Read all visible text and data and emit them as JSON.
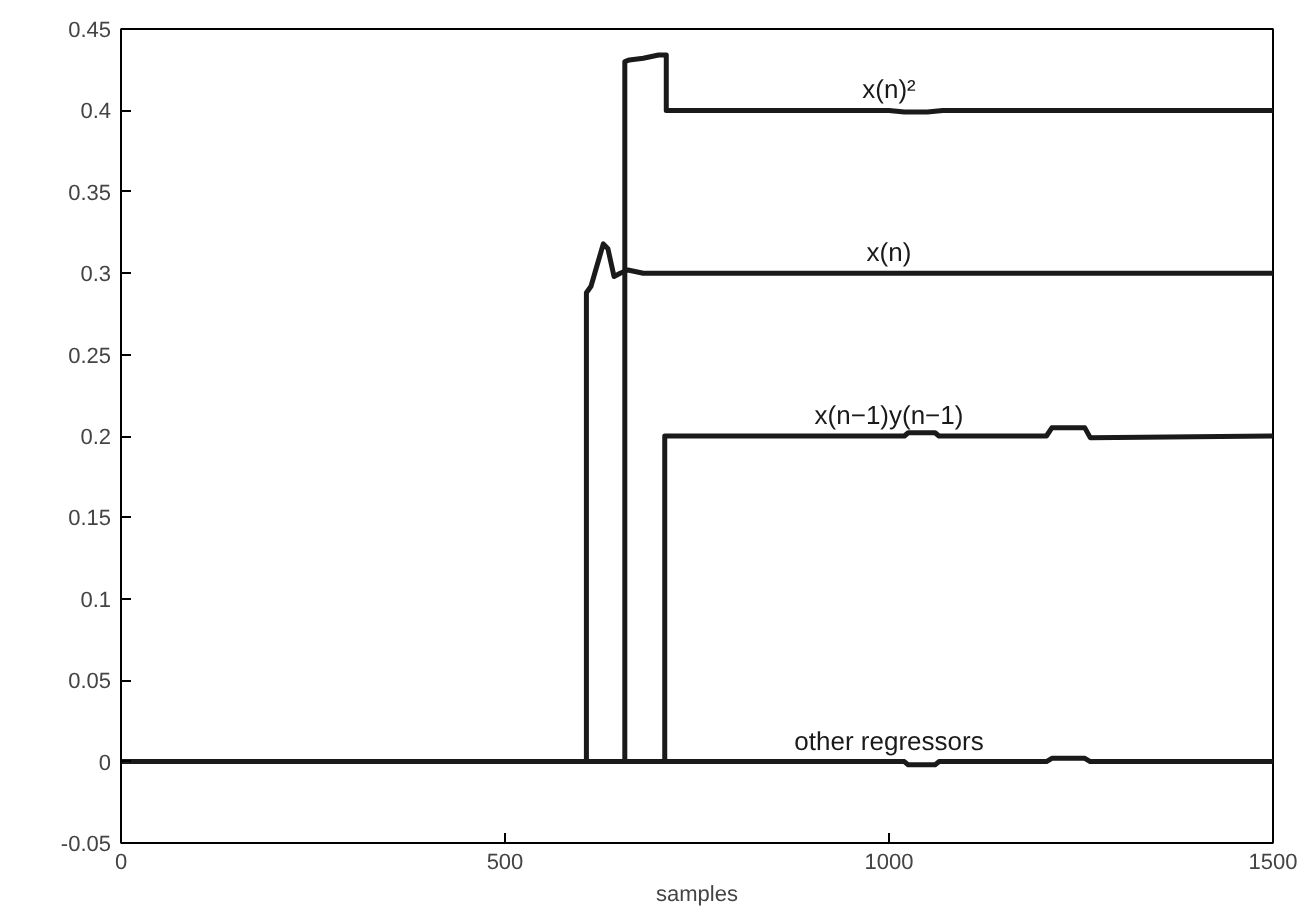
{
  "chart_data": {
    "type": "line",
    "xlabel": "samples",
    "xlim": [
      0,
      1500
    ],
    "xticks": [
      0,
      500,
      1000,
      1500
    ],
    "ylim": [
      -0.05,
      0.45
    ],
    "yticks": [
      -0.05,
      0,
      0.05,
      0.1,
      0.15,
      0.2,
      0.25,
      0.3,
      0.35,
      0.4,
      0.45
    ],
    "grid": false,
    "line_style": "solid",
    "series": [
      {
        "name": "x(n)²",
        "color": "#1a1a1a",
        "x": [
          0,
          656,
          656,
          662,
          680,
          700,
          710,
          710,
          1000,
          1020,
          1050,
          1070,
          1500
        ],
        "values": [
          0,
          0,
          0.43,
          0.431,
          0.432,
          0.434,
          0.434,
          0.4,
          0.4,
          0.399,
          0.399,
          0.4,
          0.4
        ]
      },
      {
        "name": "x(n)",
        "color": "#1a1a1a",
        "x": [
          0,
          606,
          606,
          612,
          620,
          628,
          634,
          642,
          650,
          660,
          680,
          1500
        ],
        "values": [
          0,
          0,
          0.288,
          0.292,
          0.305,
          0.318,
          0.315,
          0.298,
          0.3,
          0.302,
          0.3,
          0.3
        ]
      },
      {
        "name": "x(n−1)y(n−1)",
        "color": "#1a1a1a",
        "x": [
          0,
          708,
          708,
          1020,
          1025,
          1060,
          1065,
          1205,
          1212,
          1255,
          1262,
          1500
        ],
        "values": [
          0,
          0,
          0.2,
          0.2,
          0.202,
          0.202,
          0.2,
          0.2,
          0.205,
          0.205,
          0.199,
          0.2
        ]
      },
      {
        "name": "other regressors",
        "color": "#1a1a1a",
        "x": [
          0,
          1020,
          1025,
          1060,
          1065,
          1205,
          1212,
          1255,
          1262,
          1500
        ],
        "values": [
          0,
          0,
          -0.002,
          -0.002,
          0,
          0,
          0.002,
          0.002,
          0,
          0
        ]
      }
    ]
  }
}
